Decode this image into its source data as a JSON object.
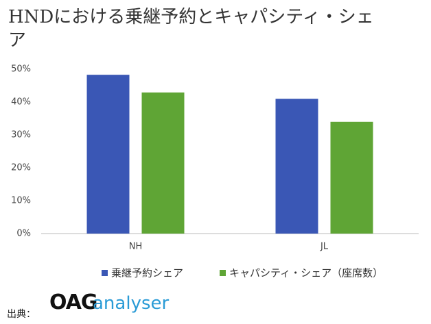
{
  "chart_data": {
    "type": "bar",
    "title": "HNDにおける乗継予約とキャパシティ・シェア",
    "categories": [
      "NH",
      "JL"
    ],
    "series": [
      {
        "name": "乗継予約シェア",
        "color": "#3a57b5",
        "values": [
          48.3,
          41
        ]
      },
      {
        "name": "キャパシティ・シェア（座席数）",
        "color": "#5fa535",
        "values": [
          42.9,
          34
        ]
      }
    ],
    "ylim": [
      0,
      50
    ],
    "yticks": [
      {
        "value": 0,
        "label": "0%"
      },
      {
        "value": 10,
        "label": "10%"
      },
      {
        "value": 20,
        "label": "20%"
      },
      {
        "value": 30,
        "label": "30%"
      },
      {
        "value": 40,
        "label": "40%"
      },
      {
        "value": 50,
        "label": "50%"
      }
    ],
    "grid": false,
    "legend": "bottom"
  },
  "source": {
    "label": "出典：",
    "logo": "OAG",
    "logo_sub": "analyser"
  }
}
